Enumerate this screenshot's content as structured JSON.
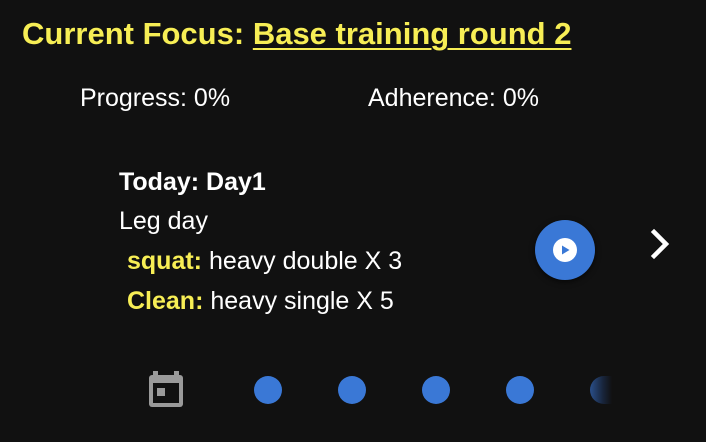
{
  "header": {
    "focus_label": "Current Focus:",
    "focus_program": "Base training round 2"
  },
  "stats": {
    "progress": "Progress: 0%",
    "adherence": "Adherence: 0%"
  },
  "today": {
    "heading": "Today: Day1",
    "workout": "Leg day",
    "exercises": [
      {
        "name": "squat:",
        "detail": "heavy double X 3"
      },
      {
        "name": "Clean:",
        "detail": "heavy single X 5"
      }
    ]
  },
  "icons": {
    "play": "play-circle-icon",
    "next": "chevron-right-icon",
    "calendar": "calendar-icon"
  },
  "colors": {
    "accent": "#f7ee55",
    "button": "#3a78d6",
    "background": "#111111"
  }
}
